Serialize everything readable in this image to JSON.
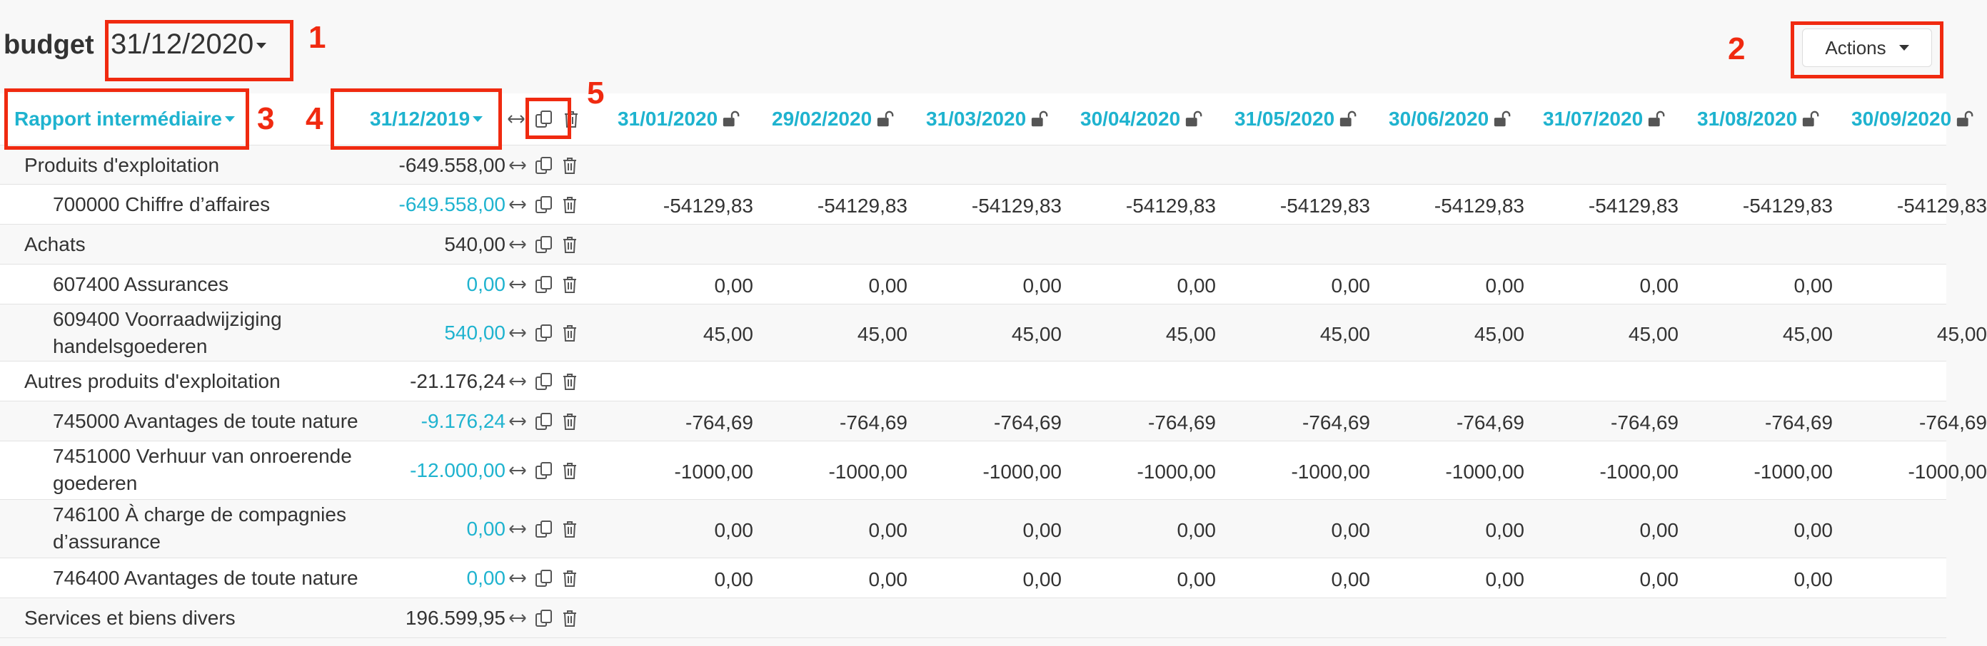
{
  "header": {
    "title": "budget",
    "selected_year": "31/12/2020",
    "actions_label": "Actions"
  },
  "annotations": [
    "1",
    "2",
    "3",
    "4",
    "5"
  ],
  "table": {
    "report_selector": "Rapport intermédiaire",
    "base_period": "31/12/2019",
    "months": [
      "31/01/2020",
      "29/02/2020",
      "31/03/2020",
      "30/04/2020",
      "31/05/2020",
      "30/06/2020",
      "31/07/2020",
      "31/08/2020",
      "30/09/2020"
    ],
    "rows": [
      {
        "label": "Produits d'exploitation",
        "total": "-649.558,00",
        "kind": "group",
        "values": [
          "",
          "",
          "",
          "",
          "",
          "",
          "",
          "",
          ""
        ]
      },
      {
        "label": "700000 Chiffre d’affaires",
        "total": "-649.558,00",
        "kind": "item",
        "values": [
          "-54129,83",
          "-54129,83",
          "-54129,83",
          "-54129,83",
          "-54129,83",
          "-54129,83",
          "-54129,83",
          "-54129,83",
          "-54129,83"
        ]
      },
      {
        "label": "Achats",
        "total": "540,00",
        "kind": "group",
        "values": [
          "",
          "",
          "",
          "",
          "",
          "",
          "",
          "",
          ""
        ]
      },
      {
        "label": "607400 Assurances",
        "total": "0,00",
        "kind": "item",
        "values": [
          "0,00",
          "0,00",
          "0,00",
          "0,00",
          "0,00",
          "0,00",
          "0,00",
          "0,00",
          ""
        ]
      },
      {
        "label": "609400 Voorraadwijziging handelsgoederen",
        "label_line1": "609400 Voorraadwijziging",
        "label_line2": "handelsgoederen",
        "total": "540,00",
        "kind": "item",
        "values": [
          "45,00",
          "45,00",
          "45,00",
          "45,00",
          "45,00",
          "45,00",
          "45,00",
          "45,00",
          "45,00"
        ]
      },
      {
        "label": "Autres produits d'exploitation",
        "total": "-21.176,24",
        "kind": "group",
        "values": [
          "",
          "",
          "",
          "",
          "",
          "",
          "",
          "",
          ""
        ]
      },
      {
        "label": "745000 Avantages de toute nature",
        "total": "-9.176,24",
        "kind": "item",
        "values": [
          "-764,69",
          "-764,69",
          "-764,69",
          "-764,69",
          "-764,69",
          "-764,69",
          "-764,69",
          "-764,69",
          "-764,69"
        ]
      },
      {
        "label": "7451000 Verhuur van onroerende goederen",
        "label_line1": "7451000 Verhuur van onroerende",
        "label_line2": "goederen",
        "total": "-12.000,00",
        "kind": "item",
        "values": [
          "-1000,00",
          "-1000,00",
          "-1000,00",
          "-1000,00",
          "-1000,00",
          "-1000,00",
          "-1000,00",
          "-1000,00",
          "-1000,00"
        ]
      },
      {
        "label": "746100 À charge de compagnies d’assurance",
        "label_line1": "746100 À charge de compagnies",
        "label_line2": "d’assurance",
        "total": "0,00",
        "kind": "item",
        "values": [
          "0,00",
          "0,00",
          "0,00",
          "0,00",
          "0,00",
          "0,00",
          "0,00",
          "0,00",
          ""
        ]
      },
      {
        "label": "746400 Avantages de toute nature",
        "total": "0,00",
        "kind": "item",
        "values": [
          "0,00",
          "0,00",
          "0,00",
          "0,00",
          "0,00",
          "0,00",
          "0,00",
          "0,00",
          ""
        ]
      },
      {
        "label": "Services et biens divers",
        "total": "196.599,95",
        "kind": "group",
        "values": [
          "",
          "",
          "",
          "",
          "",
          "",
          "",
          "",
          ""
        ]
      }
    ]
  },
  "colors": {
    "accent": "#1fb3cf",
    "annotation": "#f02a10",
    "text": "#333333"
  },
  "icons": [
    "chevron-down-icon",
    "arrows-horizontal-icon",
    "copy-icon",
    "trash-icon",
    "lock-open-icon"
  ]
}
